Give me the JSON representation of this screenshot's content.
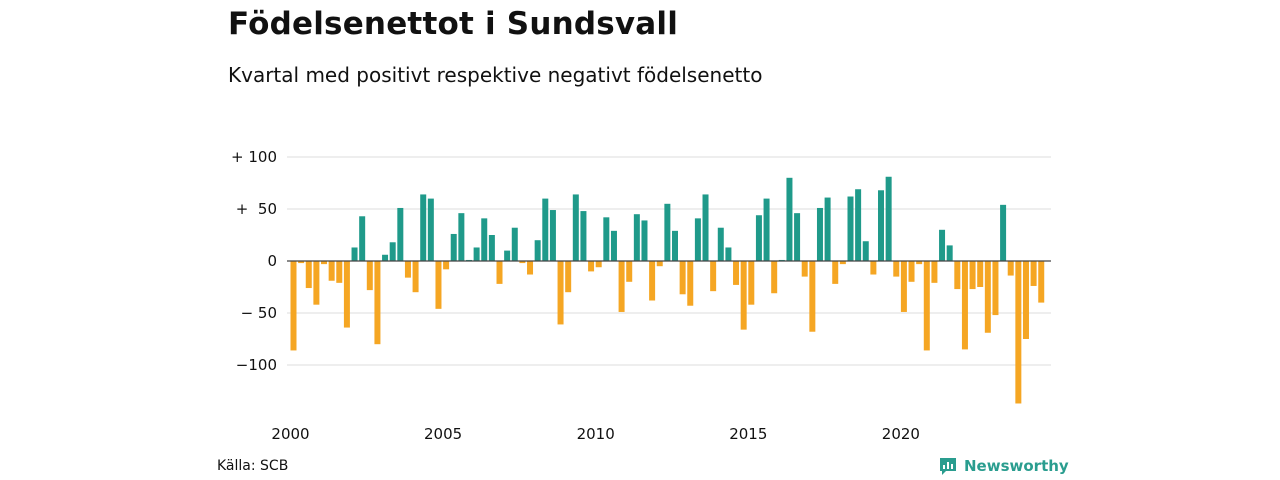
{
  "header": {
    "title": "Födelsenettot i Sundsvall",
    "subtitle": "Kvartal med positivt respektive negativt födelsenetto"
  },
  "footer": {
    "source": "Källa: SCB",
    "brand": "Newsworthy"
  },
  "colors": {
    "positive": "#1f9a8a",
    "negative": "#f5a623",
    "grid": "#dddddd",
    "brand": "#2a9d8f"
  },
  "icons": {
    "brand_logo": "bar-chart-bubble-icon"
  },
  "chart_data": {
    "type": "bar",
    "x_start": "2000-Q1",
    "x_ticks": [
      "2000",
      "2005",
      "2010",
      "2015",
      "2020"
    ],
    "y_ticks": [
      100,
      50,
      0,
      -50,
      -100
    ],
    "y_tick_labels": [
      "+ 100",
      "+  50",
      "0",
      "− 50",
      "−100"
    ],
    "ylim": [
      -140,
      100
    ],
    "grid": true,
    "values": [
      -86,
      -2,
      -26,
      -42,
      -3,
      -19,
      -21,
      -64,
      13,
      43,
      -28,
      -80,
      6,
      18,
      51,
      -16,
      -30,
      64,
      60,
      -46,
      -8,
      26,
      46,
      1,
      13,
      41,
      25,
      -22,
      10,
      32,
      -2,
      -13,
      20,
      60,
      49,
      -61,
      -30,
      64,
      48,
      -10,
      -6,
      42,
      29,
      -49,
      -20,
      45,
      39,
      -38,
      -5,
      55,
      29,
      -32,
      -43,
      41,
      64,
      -29,
      32,
      13,
      -23,
      -66,
      -42,
      44,
      60,
      -31,
      1,
      80,
      46,
      -15,
      -68,
      51,
      61,
      -22,
      -3,
      62,
      69,
      19,
      -13,
      68,
      81,
      -15,
      -49,
      -20,
      -3,
      -86,
      -21,
      30,
      15,
      -27,
      -85,
      -27,
      -25,
      -69,
      -52,
      54,
      -14,
      -137,
      -75,
      -24,
      -40
    ]
  }
}
